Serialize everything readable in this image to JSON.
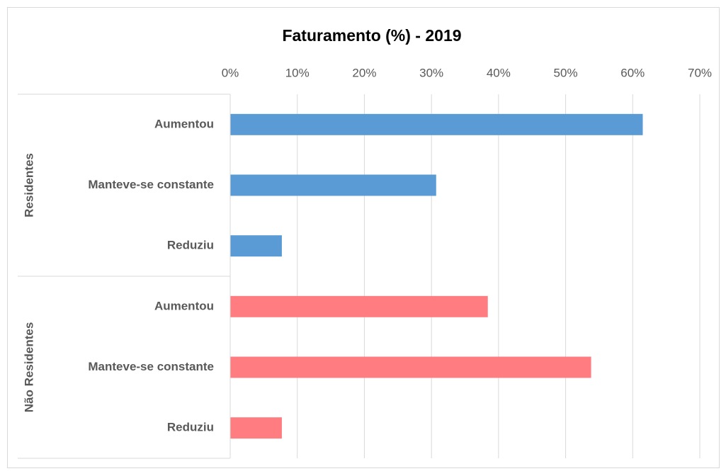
{
  "chart_data": {
    "type": "bar",
    "orientation": "horizontal",
    "title": "Faturamento (%) - 2019",
    "groups": [
      {
        "name": "Residentes",
        "color": "#5b9bd5",
        "categories": [
          "Aumentou",
          "Manteve-se constante",
          "Reduziu"
        ],
        "values": [
          61.5,
          30.7,
          7.7
        ]
      },
      {
        "name": "Não Residentes",
        "color": "#ff7c80",
        "categories": [
          "Aumentou",
          "Manteve-se constante",
          "Reduziu"
        ],
        "values": [
          38.4,
          53.8,
          7.7
        ]
      }
    ],
    "xlim": [
      0,
      70
    ],
    "xticks": [
      {
        "value": 0,
        "label": "0%"
      },
      {
        "value": 10,
        "label": "10%"
      },
      {
        "value": 20,
        "label": "20%"
      },
      {
        "value": 30,
        "label": "30%"
      },
      {
        "value": 40,
        "label": "40%"
      },
      {
        "value": 50,
        "label": "50%"
      },
      {
        "value": 60,
        "label": "60%"
      },
      {
        "value": 70,
        "label": "70%"
      }
    ],
    "grid": true
  }
}
